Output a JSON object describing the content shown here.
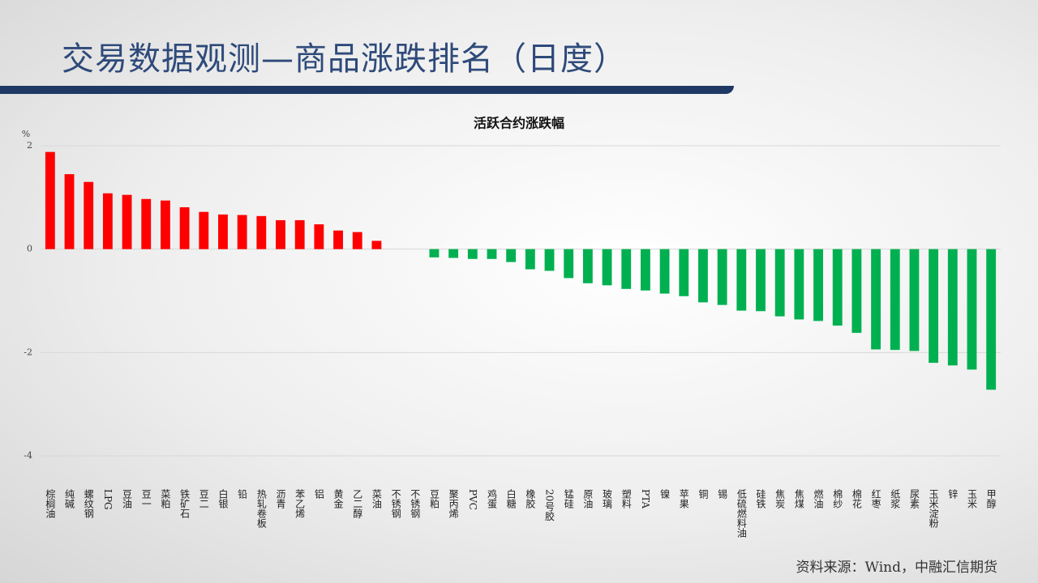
{
  "header": {
    "title": "交易数据观测—商品涨跌排名（日度）"
  },
  "chart_data": {
    "type": "bar",
    "title": "活跃合约涨跌幅",
    "y_unit": "%",
    "categories": [
      "棕榈油",
      "纯碱",
      "螺纹钢",
      "LPG",
      "豆油",
      "豆一",
      "菜粕",
      "铁矿石",
      "豆二",
      "白银",
      "铅",
      "热轧卷板",
      "沥青",
      "苯乙烯",
      "铝",
      "黄金",
      "乙二醇",
      "菜油",
      "不锈钢",
      "不锈钢",
      "豆粕",
      "聚丙烯",
      "PVC",
      "鸡蛋",
      "白糖",
      "橡胶",
      "20号胶",
      "锰硅",
      "原油",
      "玻璃",
      "塑料",
      "PTA",
      "镍",
      "苹果",
      "铜",
      "锡",
      "低硫燃料油",
      "硅铁",
      "焦炭",
      "焦煤",
      "燃油",
      "棉纱",
      "棉花",
      "红枣",
      "纸浆",
      "尿素",
      "玉米淀粉",
      "锌",
      "玉米",
      "甲醇"
    ],
    "values": [
      1.88,
      1.45,
      1.3,
      1.08,
      1.05,
      0.97,
      0.94,
      0.81,
      0.72,
      0.67,
      0.66,
      0.64,
      0.56,
      0.56,
      0.48,
      0.36,
      0.33,
      0.16,
      0,
      0,
      -0.16,
      -0.17,
      -0.19,
      -0.19,
      -0.25,
      -0.39,
      -0.42,
      -0.56,
      -0.66,
      -0.7,
      -0.77,
      -0.8,
      -0.86,
      -0.91,
      -1.03,
      -1.08,
      -1.19,
      -1.2,
      -1.3,
      -1.36,
      -1.39,
      -1.48,
      -1.62,
      -1.94,
      -1.95,
      -1.97,
      -2.2,
      -2.25,
      -2.33,
      -2.72
    ],
    "positive_color": "#ff0000",
    "negative_color": "#00b050",
    "ylim": [
      -4,
      2
    ],
    "yticks": [
      2,
      0,
      -2,
      -4
    ],
    "grid": true
  },
  "footer": {
    "source": "资料来源：Wind，中融汇信期货"
  }
}
